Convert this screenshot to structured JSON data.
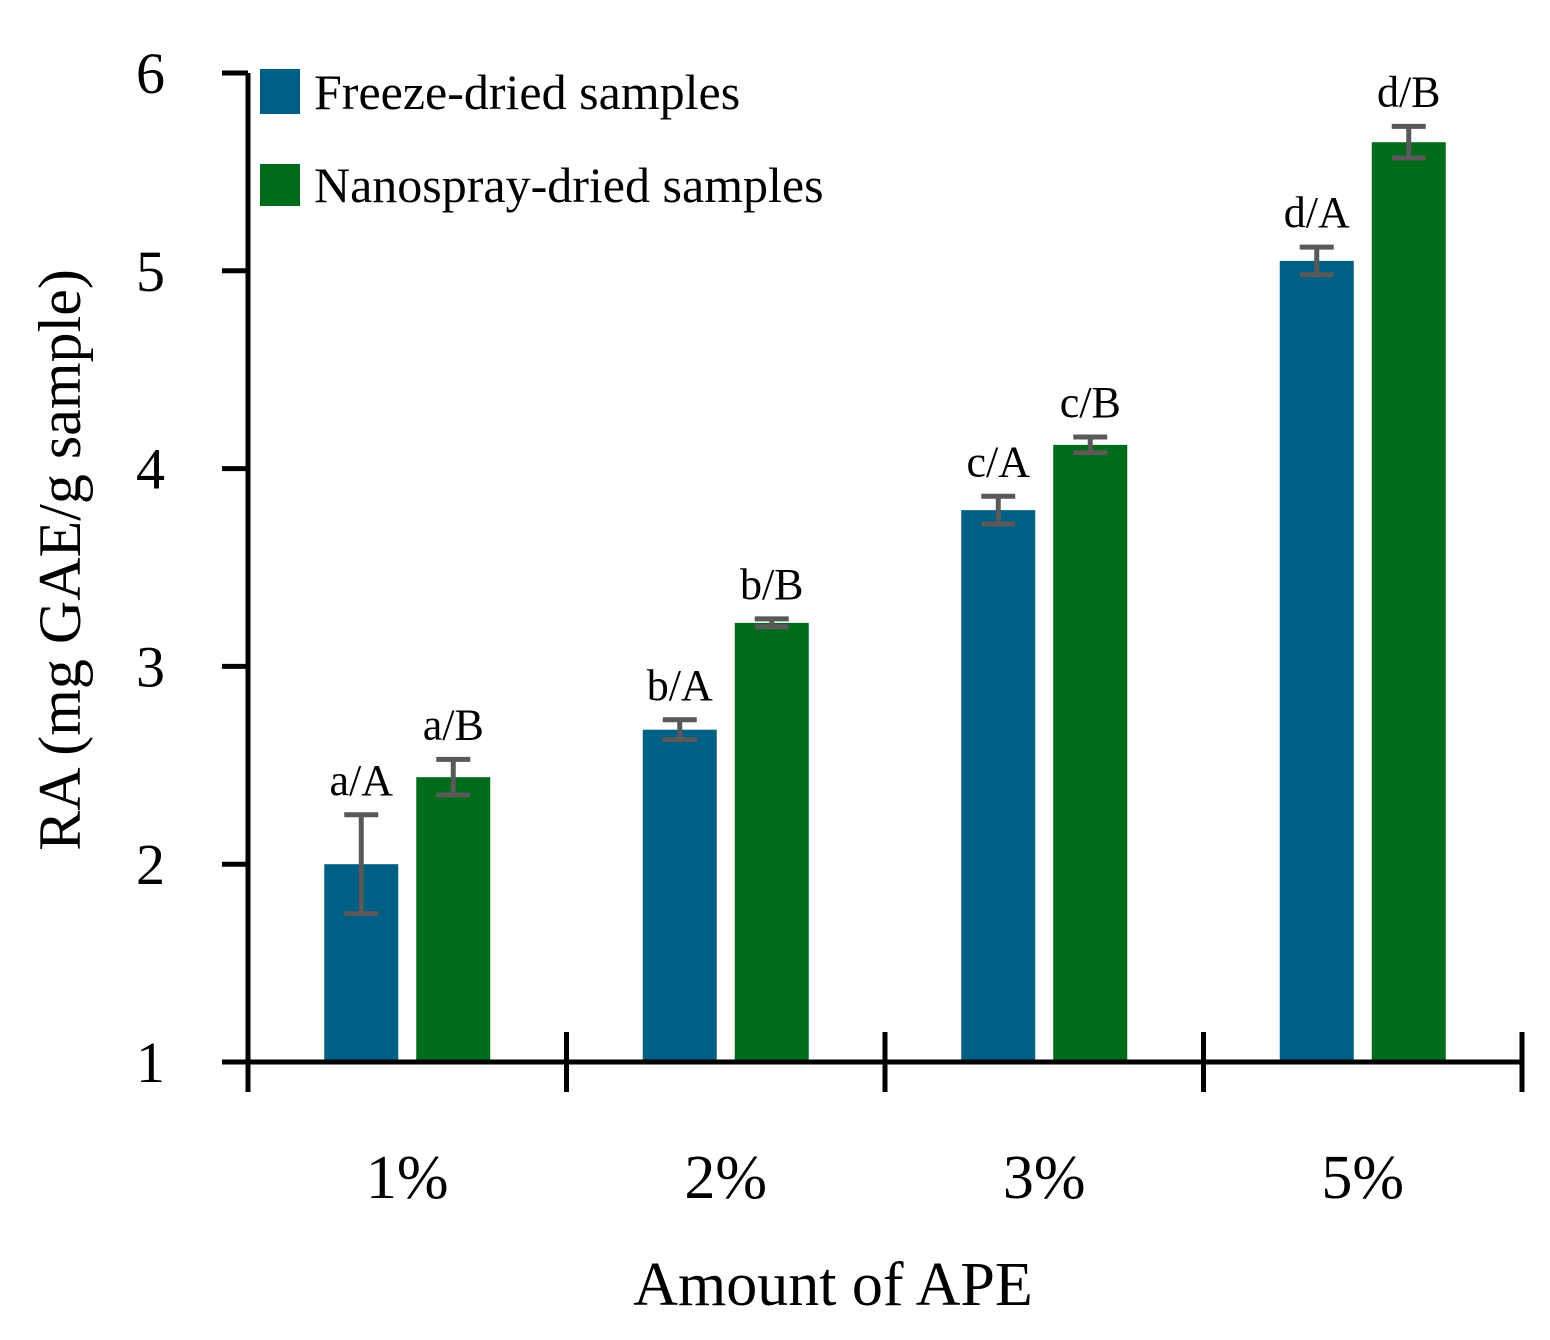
{
  "chart_data": {
    "type": "bar",
    "title": "",
    "xlabel": "Amount of APE",
    "ylabel": "RA (mg GAE/g sample)",
    "ylim": [
      1,
      6
    ],
    "yticks": [
      "1",
      "2",
      "3",
      "4",
      "5",
      "6"
    ],
    "grid": false,
    "legend_position": "top-left",
    "categories": [
      "1%",
      "2%",
      "3%",
      "5%"
    ],
    "series": [
      {
        "name": "Freeze-dried samples",
        "color": "#005f85",
        "values": [
          2.0,
          2.68,
          3.79,
          5.05
        ],
        "errors": [
          0.25,
          0.05,
          0.07,
          0.07
        ],
        "labels": [
          "a/A",
          "b/A",
          "c/A",
          "d/A"
        ]
      },
      {
        "name": "Nanospray-dried samples",
        "color": "#006b1b",
        "values": [
          2.44,
          3.22,
          4.12,
          5.65
        ],
        "errors": [
          0.09,
          0.02,
          0.04,
          0.08
        ],
        "labels": [
          "a/B",
          "b/B",
          "c/B",
          "d/B"
        ]
      }
    ],
    "error_bar_color": "#595959"
  }
}
